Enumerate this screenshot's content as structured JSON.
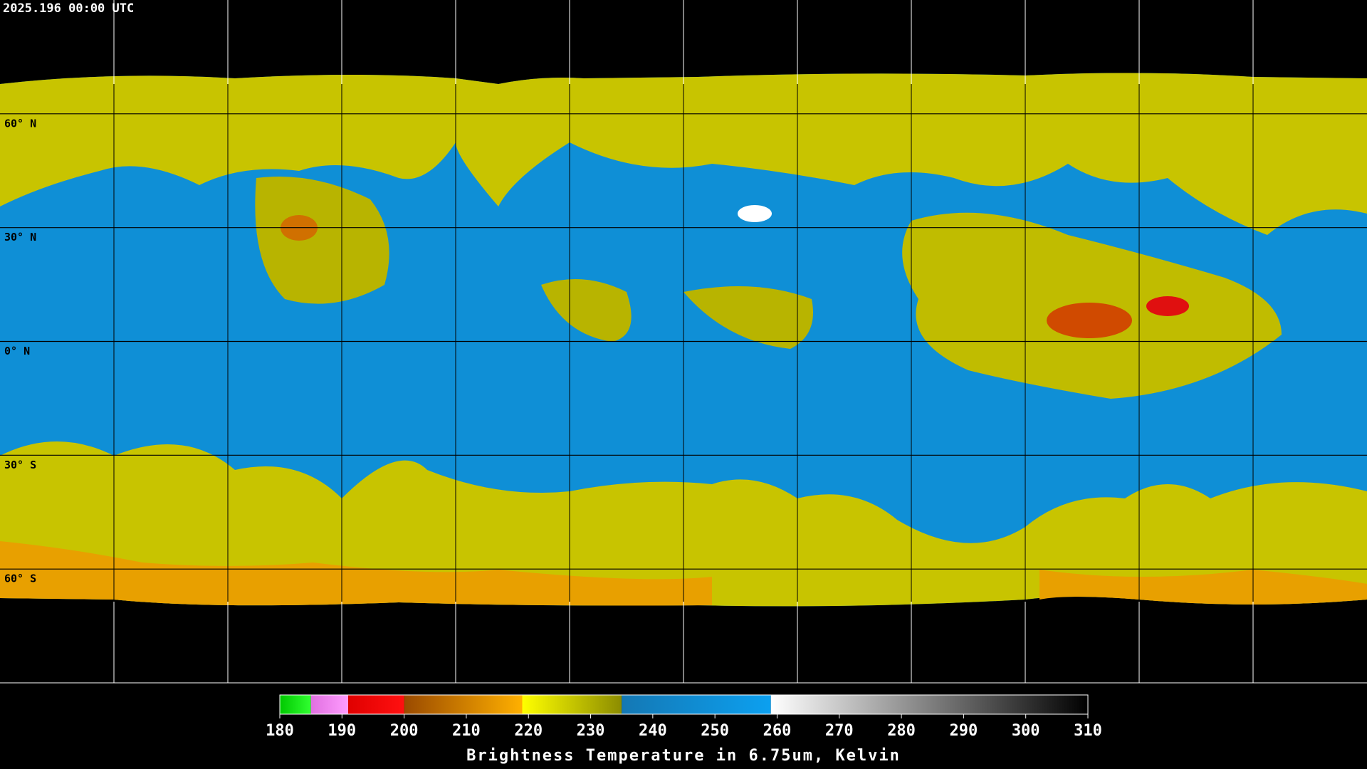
{
  "header": {
    "timestamp": "2025.196 00:00 UTC"
  },
  "map": {
    "lat_labels": [
      "60° N",
      "30° N",
      "0° N",
      "30° S",
      "60° S"
    ]
  },
  "colorbar": {
    "label": "Brightness Temperature in 6.75um, Kelvin",
    "range": [
      180,
      310
    ],
    "ticks": [
      180,
      190,
      200,
      210,
      220,
      230,
      240,
      250,
      260,
      270,
      280,
      290,
      300,
      310
    ],
    "segments": [
      {
        "from": 180,
        "to": 185,
        "colors": [
          "#00c800",
          "#30ff30"
        ]
      },
      {
        "from": 185,
        "to": 191,
        "colors": [
          "#e070e0",
          "#ff9cff"
        ]
      },
      {
        "from": 191,
        "to": 200,
        "colors": [
          "#e00000",
          "#ff1010"
        ]
      },
      {
        "from": 200,
        "to": 219,
        "colors": [
          "#9a4a00",
          "#ffb000"
        ]
      },
      {
        "from": 219,
        "to": 235,
        "colors": [
          "#ffff00",
          "#8c8c00"
        ]
      },
      {
        "from": 235,
        "to": 259,
        "colors": [
          "#1478b4",
          "#0ca0f0"
        ]
      },
      {
        "from": 259,
        "to": 310,
        "colors": [
          "#ffffff",
          "#000000"
        ]
      }
    ]
  }
}
